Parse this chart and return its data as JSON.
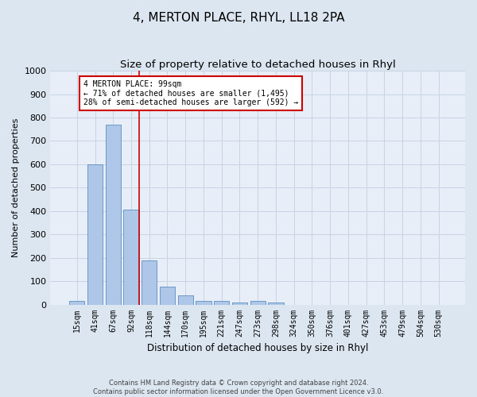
{
  "title": "4, MERTON PLACE, RHYL, LL18 2PA",
  "subtitle": "Size of property relative to detached houses in Rhyl",
  "xlabel": "Distribution of detached houses by size in Rhyl",
  "ylabel": "Number of detached properties",
  "footer_line1": "Contains HM Land Registry data © Crown copyright and database right 2024.",
  "footer_line2": "Contains public sector information licensed under the Open Government Licence v3.0.",
  "bar_labels": [
    "15sqm",
    "41sqm",
    "67sqm",
    "92sqm",
    "118sqm",
    "144sqm",
    "170sqm",
    "195sqm",
    "221sqm",
    "247sqm",
    "273sqm",
    "298sqm",
    "324sqm",
    "350sqm",
    "376sqm",
    "401sqm",
    "427sqm",
    "453sqm",
    "479sqm",
    "504sqm",
    "530sqm"
  ],
  "bar_values": [
    15,
    600,
    770,
    405,
    190,
    75,
    38,
    17,
    15,
    10,
    14,
    8,
    0,
    0,
    0,
    0,
    0,
    0,
    0,
    0,
    0
  ],
  "bar_color": "#aec6e8",
  "bar_edge_color": "#5a8fc0",
  "vline_color": "#cc0000",
  "vline_index": 3.43,
  "annotation_text": "4 MERTON PLACE: 99sqm\n← 71% of detached houses are smaller (1,495)\n28% of semi-detached houses are larger (592) →",
  "annotation_box_color": "#cc0000",
  "ylim": [
    0,
    1000
  ],
  "yticks": [
    0,
    100,
    200,
    300,
    400,
    500,
    600,
    700,
    800,
    900,
    1000
  ],
  "grid_color": "#c8d4e4",
  "background_color": "#dce6f0",
  "plot_bg_color": "#e8eef8",
  "title_fontsize": 11,
  "subtitle_fontsize": 9.5
}
